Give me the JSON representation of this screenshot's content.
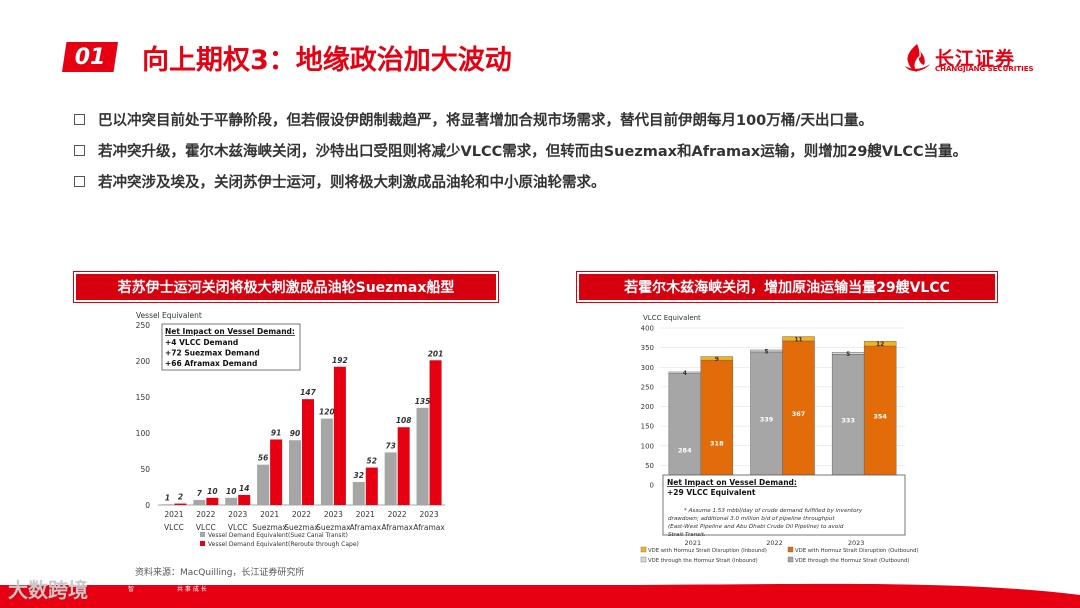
{
  "header": {
    "section_number": "01",
    "title": "向上期权3：地缘政治加大波动",
    "logo_cn": "长江证券",
    "logo_en": "CHANGJIANG SECURITIES"
  },
  "bullets": [
    "巴以冲突目前处于平静阶段，但若假设伊朗制裁趋严，将显著增加合规市场需求，替代目前伊朗每月100万桶/天出口量。",
    "若冲突升级，霍尔木兹海峡关闭，沙特出口受阻则将减少VLCC需求，但转而由Suezmax和Aframax运输，则增加29艘VLCC当量。",
    "若冲突涉及埃及，关闭苏伊士运河，则将极大刺激成品油轮和中小原油轮需求。"
  ],
  "colors": {
    "accent": "#e60012",
    "grey_bar": "#a6a6a6",
    "orange_bar": "#e36c0a",
    "yellow_bar": "#f4b31b"
  },
  "chart_data": [
    {
      "type": "bar",
      "panel_title": "若苏伊士运河关闭将极大刺激成品油轮Suezmax船型",
      "ylabel": "Vessel Equivalent",
      "ylim": [
        0,
        250
      ],
      "yticks": [
        0,
        50,
        100,
        150,
        200,
        250
      ],
      "years": [
        "2021",
        "2022",
        "2023",
        "2021",
        "2022",
        "2023",
        "2021",
        "2022",
        "2023"
      ],
      "categories": [
        "VLCC",
        "VLCC",
        "VLCC",
        "Suezmax",
        "Suezmax",
        "Suezmax",
        "Aframax",
        "Aframax",
        "Aframax"
      ],
      "series": [
        {
          "name": "Vessel Demand Equivalent(Suez Canal Transit)",
          "values": [
            1,
            7,
            10,
            56,
            90,
            120,
            32,
            73,
            135
          ]
        },
        {
          "name": "Vessel Demand Equivalent(Reroute through Cape)",
          "values": [
            2,
            10,
            14,
            91,
            147,
            192,
            52,
            108,
            201
          ]
        }
      ],
      "annotation": {
        "title": "Net Impact on Vessel Demand:",
        "lines": [
          "+4 VLCC Demand",
          "+72 Suezmax Demand",
          "+66 Aframax Demand"
        ]
      },
      "legend_placement": "bottom"
    },
    {
      "type": "bar",
      "panel_title": "若霍尔木兹海峡关闭，增加原油运输当量29艘VLCC",
      "ylabel": "VLCC Equivalent",
      "ylim": [
        0,
        400
      ],
      "yticks": [
        0,
        50,
        100,
        150,
        200,
        250,
        300,
        350,
        400
      ],
      "categories": [
        "2021",
        "2022",
        "2023"
      ],
      "series": [
        {
          "name": "VDE through the Hormuz Strait (Inbound)",
          "values": [
            4,
            5,
            5
          ]
        },
        {
          "name": "VDE through the Hormuz Strait (Outbound)",
          "values": [
            284,
            339,
            333
          ]
        },
        {
          "name": "VDE with Hormuz Strait Disruption (Inbound)",
          "values": [
            9,
            11,
            12
          ]
        },
        {
          "name": "VDE with Hormuz Strait Disruption (Outbound)",
          "values": [
            318,
            367,
            354
          ]
        }
      ],
      "annotation": {
        "title": "Net Impact on Vessel Demand:",
        "lines": [
          "+29 VLCC Equivalent"
        ],
        "footnote": "* Assume 1.53 mbbl/day of crude demand fulfilled by inventory drawdown; additional 3.0 million b/d of pipeline throughput (East-West Pipeline and Abu Dhabi Crude Oil Pipeline) to avoid Strait Transit."
      },
      "legend_placement": "bottom"
    }
  ],
  "source": "资料来源：MacQuilling，长江证券研究所",
  "watermark": "大数跨境",
  "footer": {
    "text_a": "智",
    "text_b": "共 事 成 长"
  }
}
